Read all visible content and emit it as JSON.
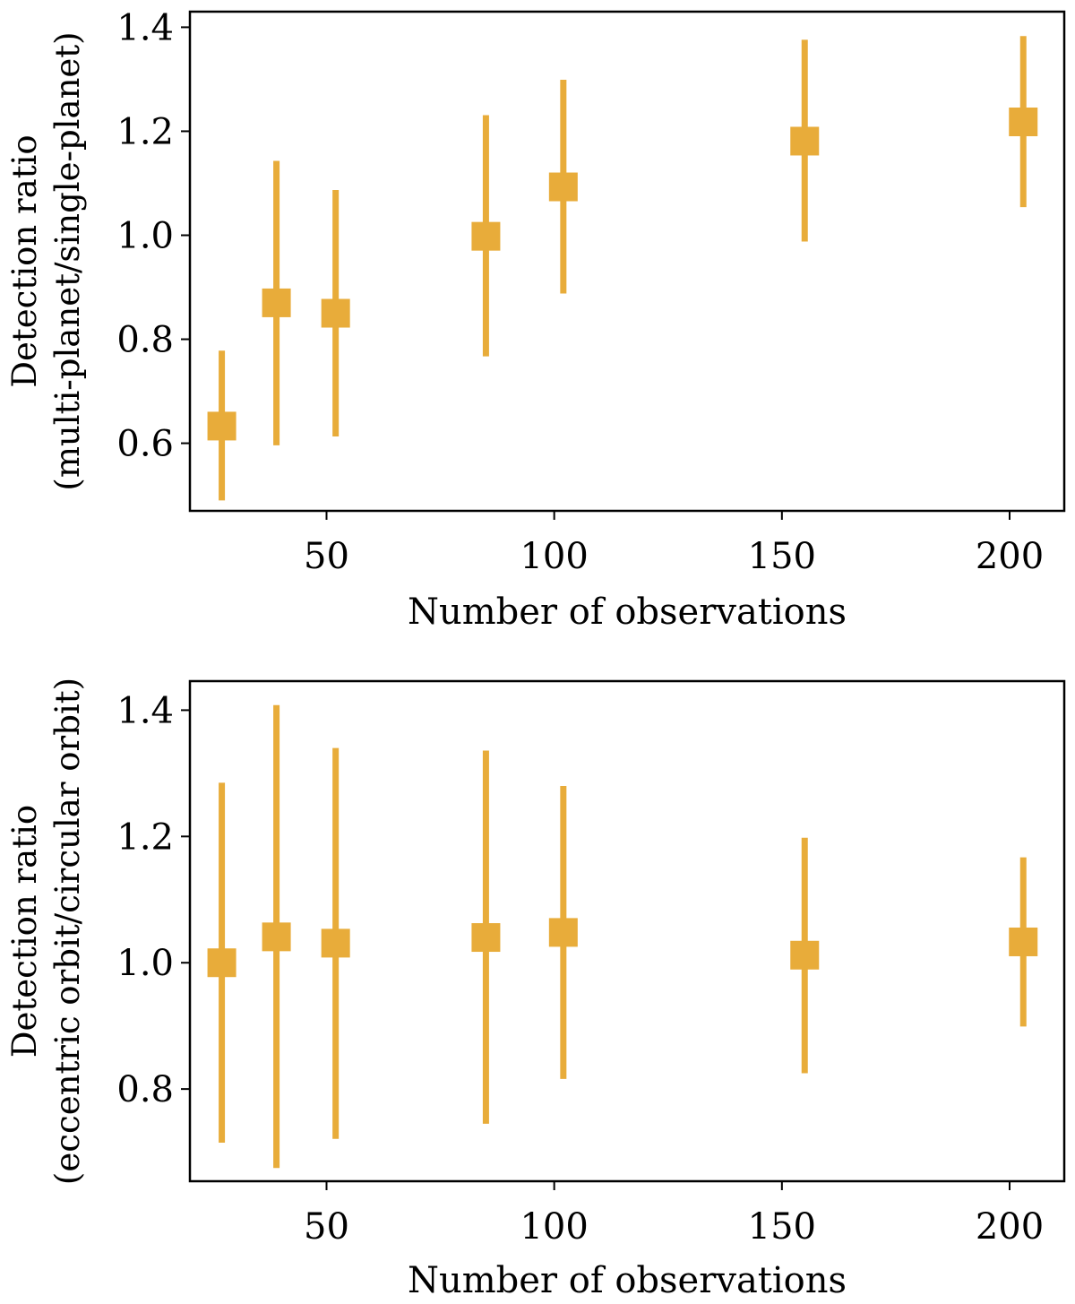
{
  "chart_data": [
    {
      "type": "scatter",
      "title": "",
      "xlabel": "Number of observations",
      "ylabel_line1": "Detection ratio",
      "ylabel_line2": "(multi-planet/single-planet)",
      "xlim": [
        20,
        212
      ],
      "ylim": [
        0.47,
        1.43
      ],
      "xticks": [
        50,
        100,
        150,
        200
      ],
      "xtick_labels": [
        "50",
        "100",
        "150",
        "200"
      ],
      "yticks": [
        0.6,
        0.8,
        1.0,
        1.2,
        1.4
      ],
      "ytick_labels": [
        "0.6",
        "0.8",
        "1.0",
        "1.2",
        "1.4"
      ],
      "grid": false,
      "marker": "square",
      "color": "#e8ac3a",
      "points": [
        {
          "x": 27,
          "y": 0.633,
          "low": 0.49,
          "high": 0.778
        },
        {
          "x": 39,
          "y": 0.87,
          "low": 0.596,
          "high": 1.143
        },
        {
          "x": 52,
          "y": 0.85,
          "low": 0.613,
          "high": 1.087
        },
        {
          "x": 85,
          "y": 0.998,
          "low": 0.767,
          "high": 1.231
        },
        {
          "x": 102,
          "y": 1.093,
          "low": 0.888,
          "high": 1.299
        },
        {
          "x": 155,
          "y": 1.181,
          "low": 0.988,
          "high": 1.376
        },
        {
          "x": 203,
          "y": 1.218,
          "low": 1.054,
          "high": 1.383
        }
      ]
    },
    {
      "type": "scatter",
      "title": "",
      "xlabel": "Number of observations",
      "ylabel_line1": "Detection ratio",
      "ylabel_line2": "(eccentric orbit/circular orbit)",
      "xlim": [
        20,
        212
      ],
      "ylim": [
        0.654,
        1.446
      ],
      "xticks": [
        50,
        100,
        150,
        200
      ],
      "xtick_labels": [
        "50",
        "100",
        "150",
        "200"
      ],
      "yticks": [
        0.8,
        1.0,
        1.2,
        1.4
      ],
      "ytick_labels": [
        "0.8",
        "1.0",
        "1.2",
        "1.4"
      ],
      "grid": false,
      "marker": "square",
      "color": "#e8ac3a",
      "points": [
        {
          "x": 27,
          "y": 1.0,
          "low": 0.715,
          "high": 1.285
        },
        {
          "x": 39,
          "y": 1.041,
          "low": 0.675,
          "high": 1.408
        },
        {
          "x": 52,
          "y": 1.031,
          "low": 0.721,
          "high": 1.34
        },
        {
          "x": 85,
          "y": 1.04,
          "low": 0.745,
          "high": 1.336
        },
        {
          "x": 102,
          "y": 1.048,
          "low": 0.816,
          "high": 1.28
        },
        {
          "x": 155,
          "y": 1.012,
          "low": 0.825,
          "high": 1.198
        },
        {
          "x": 203,
          "y": 1.033,
          "low": 0.899,
          "high": 1.167
        }
      ]
    }
  ]
}
